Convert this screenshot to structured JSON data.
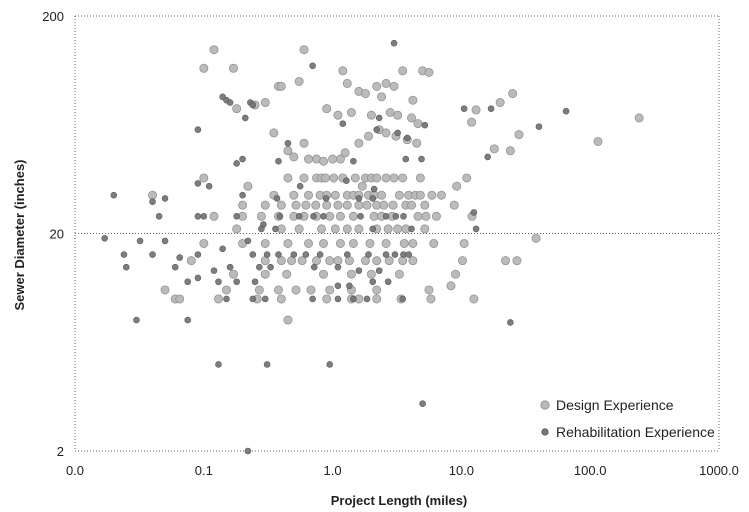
{
  "chart_data": {
    "type": "scatter",
    "title": "",
    "xlabel": "Project Length (miles)",
    "ylabel": "Sewer Diameter (inches)",
    "x_scale": "log",
    "y_scale": "log",
    "xlim": [
      0.01,
      1000
    ],
    "ylim": [
      2,
      200
    ],
    "x_ticks": [
      0.01,
      0.1,
      1,
      10,
      100,
      1000
    ],
    "x_tick_labels": [
      "0.0",
      "0.1",
      "1.0",
      "10.0",
      "100.0",
      "1000.0"
    ],
    "y_ticks": [
      2,
      20,
      200
    ],
    "y_tick_labels": [
      "2",
      "20",
      "200"
    ],
    "grid": "horizontal dotted line at 20",
    "legend_position": "bottom-right",
    "series": [
      {
        "name": "Design Experience",
        "color": "#b8b8b8",
        "points": [
          [
            0.12,
            140
          ],
          [
            0.1,
            115
          ],
          [
            0.17,
            115
          ],
          [
            0.6,
            140
          ],
          [
            0.3,
            80
          ],
          [
            0.38,
            95
          ],
          [
            0.4,
            95
          ],
          [
            0.55,
            100
          ],
          [
            1.2,
            112
          ],
          [
            1.3,
            98
          ],
          [
            1.6,
            90
          ],
          [
            1.8,
            88
          ],
          [
            2.2,
            95
          ],
          [
            2.4,
            85
          ],
          [
            3.5,
            112
          ],
          [
            5,
            112
          ],
          [
            4.2,
            82
          ],
          [
            5.6,
            110
          ],
          [
            3,
            95
          ],
          [
            2.6,
            98
          ],
          [
            0.18,
            75
          ],
          [
            0.25,
            78
          ],
          [
            0.9,
            75
          ],
          [
            1.1,
            70
          ],
          [
            1.4,
            72
          ],
          [
            2,
            70
          ],
          [
            2.8,
            72
          ],
          [
            3.2,
            70
          ],
          [
            0.6,
            52
          ],
          [
            0.35,
            58
          ],
          [
            0.45,
            48
          ],
          [
            0.5,
            45
          ],
          [
            0.65,
            44
          ],
          [
            0.75,
            44
          ],
          [
            0.85,
            43
          ],
          [
            1,
            44
          ],
          [
            1.15,
            44
          ],
          [
            1.25,
            47
          ],
          [
            1.6,
            52
          ],
          [
            1.9,
            56
          ],
          [
            2.3,
            60
          ],
          [
            2.6,
            58
          ],
          [
            3.1,
            56
          ],
          [
            3.8,
            54
          ],
          [
            4.5,
            52
          ],
          [
            4.1,
            68
          ],
          [
            4.6,
            64
          ],
          [
            12,
            65
          ],
          [
            13,
            74
          ],
          [
            18,
            49
          ],
          [
            20,
            80
          ],
          [
            24,
            48
          ],
          [
            25,
            88
          ],
          [
            28,
            57
          ],
          [
            0.1,
            36
          ],
          [
            0.45,
            36
          ],
          [
            0.6,
            36
          ],
          [
            0.75,
            36
          ],
          [
            0.82,
            36
          ],
          [
            0.88,
            36
          ],
          [
            1.02,
            36
          ],
          [
            1.2,
            36
          ],
          [
            1.5,
            36
          ],
          [
            1.7,
            33
          ],
          [
            1.8,
            36
          ],
          [
            2,
            36
          ],
          [
            2.2,
            36
          ],
          [
            2.6,
            36
          ],
          [
            3,
            36
          ],
          [
            3.5,
            36
          ],
          [
            4.8,
            36
          ],
          [
            9.2,
            33
          ],
          [
            11,
            36
          ],
          [
            0.22,
            33
          ],
          [
            0.35,
            30
          ],
          [
            0.5,
            30
          ],
          [
            0.65,
            30
          ],
          [
            0.8,
            30
          ],
          [
            0.9,
            30
          ],
          [
            1.05,
            30
          ],
          [
            1.3,
            30
          ],
          [
            1.45,
            30
          ],
          [
            1.6,
            30
          ],
          [
            1.9,
            30
          ],
          [
            2.1,
            30
          ],
          [
            2.4,
            30
          ],
          [
            3.3,
            30
          ],
          [
            3.9,
            30
          ],
          [
            4.4,
            30
          ],
          [
            4.8,
            30
          ],
          [
            5.9,
            30
          ],
          [
            7,
            30
          ],
          [
            8.8,
            27
          ],
          [
            0.04,
            30
          ],
          [
            0.2,
            27
          ],
          [
            0.3,
            27
          ],
          [
            0.4,
            27
          ],
          [
            0.52,
            27
          ],
          [
            0.62,
            27
          ],
          [
            0.74,
            27
          ],
          [
            0.9,
            27
          ],
          [
            1.1,
            27
          ],
          [
            1.3,
            27
          ],
          [
            1.6,
            27
          ],
          [
            1.85,
            27
          ],
          [
            2.2,
            27
          ],
          [
            2.5,
            27
          ],
          [
            2.95,
            27
          ],
          [
            3.7,
            27
          ],
          [
            4.1,
            27
          ],
          [
            5.2,
            27
          ],
          [
            0.12,
            24
          ],
          [
            0.2,
            24
          ],
          [
            0.28,
            24
          ],
          [
            0.38,
            24
          ],
          [
            0.5,
            24
          ],
          [
            0.6,
            24
          ],
          [
            0.75,
            24
          ],
          [
            0.95,
            24
          ],
          [
            1.15,
            24
          ],
          [
            1.45,
            24
          ],
          [
            2.1,
            24
          ],
          [
            2.4,
            24
          ],
          [
            2.9,
            24
          ],
          [
            4.6,
            24
          ],
          [
            5.3,
            24
          ],
          [
            6.4,
            24
          ],
          [
            12.1,
            24
          ],
          [
            0.18,
            21
          ],
          [
            0.4,
            21
          ],
          [
            0.55,
            21
          ],
          [
            0.82,
            21
          ],
          [
            1.05,
            21
          ],
          [
            1.3,
            21
          ],
          [
            1.6,
            21
          ],
          [
            2.2,
            21
          ],
          [
            2.7,
            21
          ],
          [
            3.2,
            21
          ],
          [
            3.7,
            21
          ],
          [
            5.2,
            21
          ],
          [
            0.1,
            18
          ],
          [
            0.2,
            18
          ],
          [
            0.3,
            18
          ],
          [
            0.45,
            18
          ],
          [
            0.65,
            18
          ],
          [
            0.85,
            18
          ],
          [
            1.15,
            18
          ],
          [
            1.45,
            18
          ],
          [
            1.95,
            18
          ],
          [
            2.6,
            18
          ],
          [
            3.6,
            18
          ],
          [
            4.2,
            18
          ],
          [
            6.1,
            18
          ],
          [
            10.5,
            18
          ],
          [
            38,
            19
          ],
          [
            0.08,
            15
          ],
          [
            0.3,
            15
          ],
          [
            0.4,
            15
          ],
          [
            0.48,
            15
          ],
          [
            0.58,
            15
          ],
          [
            0.75,
            15
          ],
          [
            0.95,
            15
          ],
          [
            1.1,
            15
          ],
          [
            1.35,
            15
          ],
          [
            1.8,
            15
          ],
          [
            2.2,
            15
          ],
          [
            2.75,
            15
          ],
          [
            3.5,
            15
          ],
          [
            4.2,
            15
          ],
          [
            10.2,
            15
          ],
          [
            22,
            15
          ],
          [
            27,
            15
          ],
          [
            0.17,
            13
          ],
          [
            0.3,
            13
          ],
          [
            0.44,
            13
          ],
          [
            0.85,
            13
          ],
          [
            1.4,
            13
          ],
          [
            2,
            13
          ],
          [
            3.3,
            13
          ],
          [
            9,
            13
          ],
          [
            0.05,
            11
          ],
          [
            0.15,
            11
          ],
          [
            0.27,
            11
          ],
          [
            0.38,
            11
          ],
          [
            0.52,
            11
          ],
          [
            0.68,
            11
          ],
          [
            0.95,
            11
          ],
          [
            1.4,
            11
          ],
          [
            2.2,
            11
          ],
          [
            5.6,
            11
          ],
          [
            8.3,
            11.5
          ],
          [
            0.06,
            10
          ],
          [
            0.065,
            10
          ],
          [
            0.13,
            10
          ],
          [
            0.26,
            10
          ],
          [
            0.4,
            10
          ],
          [
            0.9,
            10
          ],
          [
            1.4,
            10
          ],
          [
            1.6,
            10
          ],
          [
            2.2,
            10
          ],
          [
            3.4,
            10
          ],
          [
            5.8,
            10
          ],
          [
            12.5,
            10
          ],
          [
            0.45,
            8
          ],
          [
            240,
            68
          ],
          [
            115,
            53
          ]
        ]
      },
      {
        "name": "Rehabilitation Experience",
        "color": "#777777",
        "points": [
          [
            3,
            150
          ],
          [
            0.7,
            118
          ],
          [
            0.14,
            85
          ],
          [
            0.15,
            82
          ],
          [
            0.16,
            80
          ],
          [
            0.21,
            68
          ],
          [
            0.23,
            80
          ],
          [
            0.24,
            78
          ],
          [
            1.2,
            64
          ],
          [
            2.3,
            68
          ],
          [
            2.2,
            60
          ],
          [
            3.2,
            58
          ],
          [
            5.2,
            63
          ],
          [
            0.09,
            60
          ],
          [
            10.5,
            75
          ],
          [
            17,
            75
          ],
          [
            65,
            73
          ],
          [
            40,
            62
          ],
          [
            3.8,
            55
          ],
          [
            0.45,
            52
          ],
          [
            16,
            45
          ],
          [
            0.18,
            42
          ],
          [
            0.2,
            44
          ],
          [
            0.38,
            43
          ],
          [
            1.45,
            43
          ],
          [
            3.7,
            44
          ],
          [
            4.9,
            44
          ],
          [
            0.09,
            34
          ],
          [
            0.11,
            33
          ],
          [
            0.56,
            33
          ],
          [
            1.28,
            35
          ],
          [
            2.1,
            32
          ],
          [
            0.02,
            30
          ],
          [
            0.2,
            30
          ],
          [
            0.37,
            29
          ],
          [
            0.89,
            29
          ],
          [
            1.6,
            29
          ],
          [
            2.05,
            29
          ],
          [
            0.04,
            28
          ],
          [
            0.05,
            29
          ],
          [
            0.09,
            24
          ],
          [
            0.1,
            24
          ],
          [
            0.18,
            24
          ],
          [
            0.29,
            22
          ],
          [
            0.39,
            24
          ],
          [
            0.55,
            24
          ],
          [
            0.71,
            24
          ],
          [
            0.85,
            24
          ],
          [
            1.65,
            24
          ],
          [
            2.6,
            24
          ],
          [
            3.1,
            24
          ],
          [
            3.55,
            24
          ],
          [
            0.045,
            24
          ],
          [
            12.5,
            25
          ],
          [
            0.28,
            21
          ],
          [
            0.36,
            21
          ],
          [
            2.05,
            21
          ],
          [
            4.1,
            21
          ],
          [
            13,
            21
          ],
          [
            0.017,
            19
          ],
          [
            0.032,
            18.5
          ],
          [
            0.05,
            18.5
          ],
          [
            0.22,
            18.5
          ],
          [
            0.14,
            17
          ],
          [
            0.09,
            16
          ],
          [
            0.24,
            16
          ],
          [
            0.31,
            16
          ],
          [
            0.38,
            16
          ],
          [
            0.5,
            16
          ],
          [
            0.62,
            16
          ],
          [
            0.8,
            16
          ],
          [
            1.3,
            16
          ],
          [
            1.9,
            16
          ],
          [
            2.6,
            16
          ],
          [
            3.05,
            16
          ],
          [
            3.55,
            16
          ],
          [
            3.9,
            16
          ],
          [
            0.04,
            16
          ],
          [
            0.024,
            16
          ],
          [
            0.065,
            15.5
          ],
          [
            0.16,
            14
          ],
          [
            0.12,
            13.5
          ],
          [
            0.025,
            14
          ],
          [
            0.27,
            14
          ],
          [
            0.33,
            14
          ],
          [
            0.72,
            14
          ],
          [
            1.1,
            14
          ],
          [
            1.6,
            13.5
          ],
          [
            2.3,
            13.5
          ],
          [
            0.06,
            14
          ],
          [
            0.09,
            12.5
          ],
          [
            0.075,
            12
          ],
          [
            0.13,
            12
          ],
          [
            0.18,
            12
          ],
          [
            0.25,
            12
          ],
          [
            1.1,
            11.5
          ],
          [
            1.35,
            11.5
          ],
          [
            2.05,
            12
          ],
          [
            2.7,
            12
          ],
          [
            0.3,
            10
          ],
          [
            0.15,
            10
          ],
          [
            0.24,
            10
          ],
          [
            0.7,
            10
          ],
          [
            1.1,
            10
          ],
          [
            1.45,
            10
          ],
          [
            1.85,
            10
          ],
          [
            3.5,
            10
          ],
          [
            0.03,
            8
          ],
          [
            0.075,
            8
          ],
          [
            24,
            7.8
          ],
          [
            0.13,
            5
          ],
          [
            0.31,
            5
          ],
          [
            0.95,
            5
          ],
          [
            5,
            3.3
          ],
          [
            0.22,
            2
          ]
        ]
      }
    ]
  }
}
